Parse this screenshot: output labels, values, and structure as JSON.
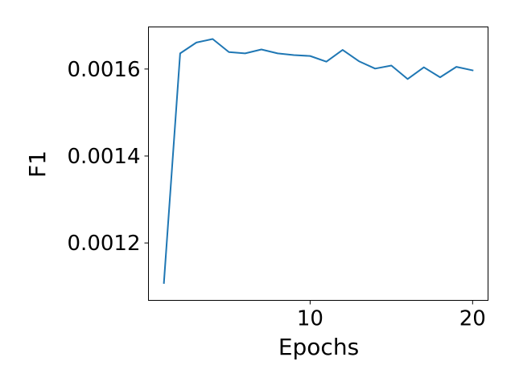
{
  "chart_data": {
    "type": "line",
    "title": "",
    "xlabel": "Epochs",
    "ylabel": "F1",
    "xlim": [
      0.05,
      20.95
    ],
    "ylim": [
      0.001068,
      0.0016968
    ],
    "xticks": [
      10,
      20
    ],
    "xtick_labels": [
      "10",
      "20"
    ],
    "yticks": [
      0.0012,
      0.0014,
      0.0016
    ],
    "ytick_labels": [
      "0.0012",
      "0.0014",
      "0.0016"
    ],
    "grid": false,
    "line_color": "#1f77b4",
    "series": [
      {
        "name": "F1",
        "x": [
          1,
          2,
          3,
          4,
          5,
          6,
          7,
          8,
          9,
          10,
          11,
          12,
          13,
          14,
          15,
          16,
          17,
          18,
          19,
          20
        ],
        "y": [
          0.001108,
          0.001636,
          0.001661,
          0.001669,
          0.001639,
          0.001636,
          0.001645,
          0.001636,
          0.001632,
          0.00163,
          0.001617,
          0.001644,
          0.001618,
          0.001601,
          0.001608,
          0.001577,
          0.001604,
          0.001581,
          0.001605,
          0.001597
        ]
      }
    ]
  }
}
